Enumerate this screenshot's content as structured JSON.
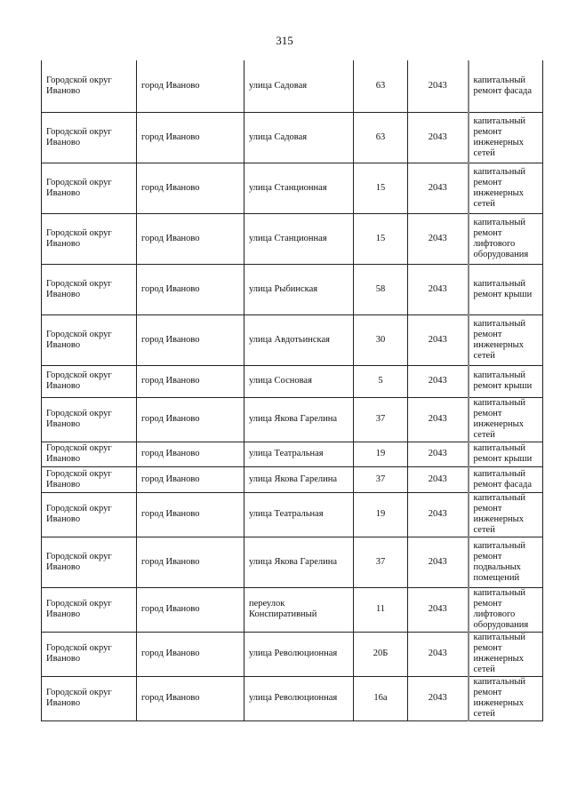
{
  "page_number": "315",
  "rows": [
    {
      "district": "Городской округ Иваново",
      "city": "город Иваново",
      "street": "улица Садовая",
      "house": "63",
      "year": "2043",
      "work": "капитальный ремонт фасада"
    },
    {
      "district": "Городской округ Иваново",
      "city": "город Иваново",
      "street": "улица Садовая",
      "house": "63",
      "year": "2043",
      "work": "капитальный ремонт инженерных сетей"
    },
    {
      "district": "Городской округ Иваново",
      "city": "город Иваново",
      "street": "улица Станционная",
      "house": "15",
      "year": "2043",
      "work": "капитальный ремонт инженерных сетей"
    },
    {
      "district": "Городской округ Иваново",
      "city": "город Иваново",
      "street": "улица Станционная",
      "house": "15",
      "year": "2043",
      "work": "капитальный ремонт лифтового оборудования"
    },
    {
      "district": "Городской округ Иваново",
      "city": "город Иваново",
      "street": "улица Рыбинская",
      "house": "58",
      "year": "2043",
      "work": "капитальный ремонт крыши"
    },
    {
      "district": "Городской округ Иваново",
      "city": "город Иваново",
      "street": "улица Авдотьинская",
      "house": "30",
      "year": "2043",
      "work": "капитальный ремонт инженерных сетей"
    },
    {
      "district": "Городской округ Иваново",
      "city": "город Иваново",
      "street": "улица Сосновая",
      "house": "5",
      "year": "2043",
      "work": "капитальный ремонт крыши"
    },
    {
      "district": "Городской округ Иваново",
      "city": "город Иваново",
      "street": "улица Якова Гарелина",
      "house": "37",
      "year": "2043",
      "work": "капитальный ремонт инженерных сетей"
    },
    {
      "district": "Городской округ Иваново",
      "city": "город Иваново",
      "street": "улица Театральная",
      "house": "19",
      "year": "2043",
      "work": "капитальный ремонт крыши"
    },
    {
      "district": "Городской округ Иваново",
      "city": "город Иваново",
      "street": "улица Якова Гарелина",
      "house": "37",
      "year": "2043",
      "work": "капитальный ремонт фасада"
    },
    {
      "district": "Городской округ Иваново",
      "city": "город Иваново",
      "street": "улица Театральная",
      "house": "19",
      "year": "2043",
      "work": "капитальный ремонт инженерных сетей"
    },
    {
      "district": "Городской округ Иваново",
      "city": "город Иваново",
      "street": "улица Якова Гарелина",
      "house": "37",
      "year": "2043",
      "work": "капитальный ремонт подвальных помещений"
    },
    {
      "district": "Городской округ Иваново",
      "city": "город Иваново",
      "street": "переулок Конспиративный",
      "house": "11",
      "year": "2043",
      "work": "капитальный ремонт лифтового оборудования"
    },
    {
      "district": "Городской округ Иваново",
      "city": "город Иваново",
      "street": "улица Революционная",
      "house": "20Б",
      "year": "2043",
      "work": "капитальный ремонт инженерных сетей"
    },
    {
      "district": "Городской округ Иваново",
      "city": "город Иваново",
      "street": "улица Революционная",
      "house": "16а",
      "year": "2043",
      "work": "капитальный ремонт инженерных сетей"
    }
  ]
}
